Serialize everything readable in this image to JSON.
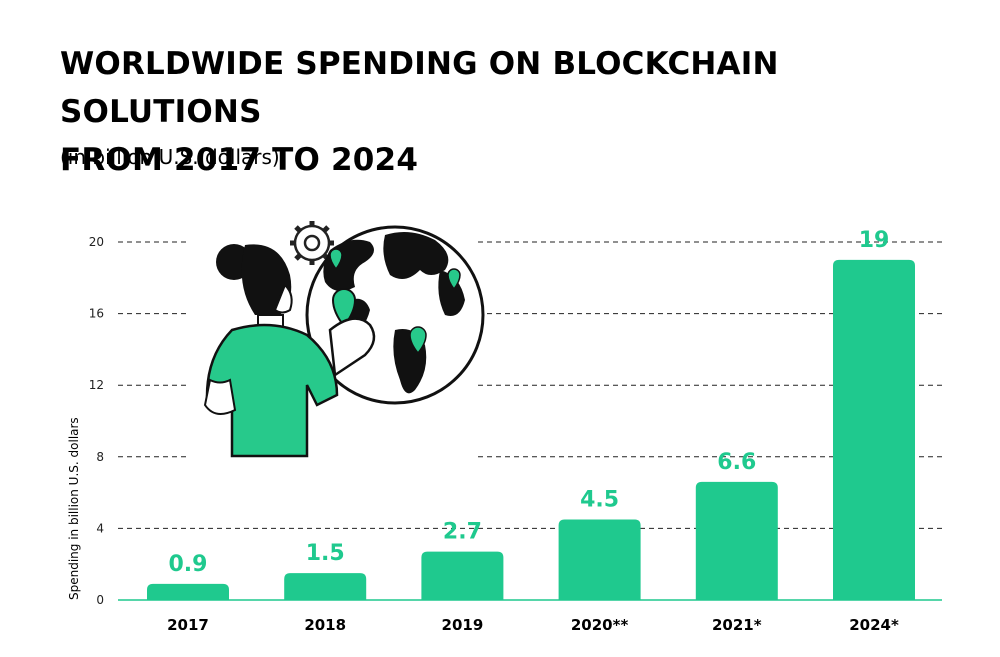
{
  "chart_data": {
    "type": "bar",
    "title_line1": "WORLDWIDE SPENDING ON BLOCKCHAIN SOLUTIONS",
    "title_line2": "FROM 2017 TO 2024",
    "subtitle": "(in billion U.S. dollars)",
    "xlabel": "",
    "ylabel": "Spending in billion U.S. dollars",
    "categories": [
      "2017",
      "2018",
      "2019",
      "2020**",
      "2021*",
      "2024*"
    ],
    "values": [
      0.9,
      1.5,
      2.7,
      4.5,
      6.6,
      19
    ],
    "value_labels": [
      "0.9",
      "1.5",
      "2.7",
      "4.5",
      "6.6",
      "19"
    ],
    "ylim": [
      0,
      20
    ],
    "yticks": [
      "0",
      "4",
      "8",
      "12",
      "16",
      "20"
    ],
    "grid": true,
    "grid_style": "dashed"
  },
  "colors": {
    "bar": "#1fc98e",
    "label": "#1fc98e",
    "grid": "#222222",
    "illustration_green": "#27c98b"
  },
  "illustration": {
    "icon": "woman-with-globe-icon"
  }
}
